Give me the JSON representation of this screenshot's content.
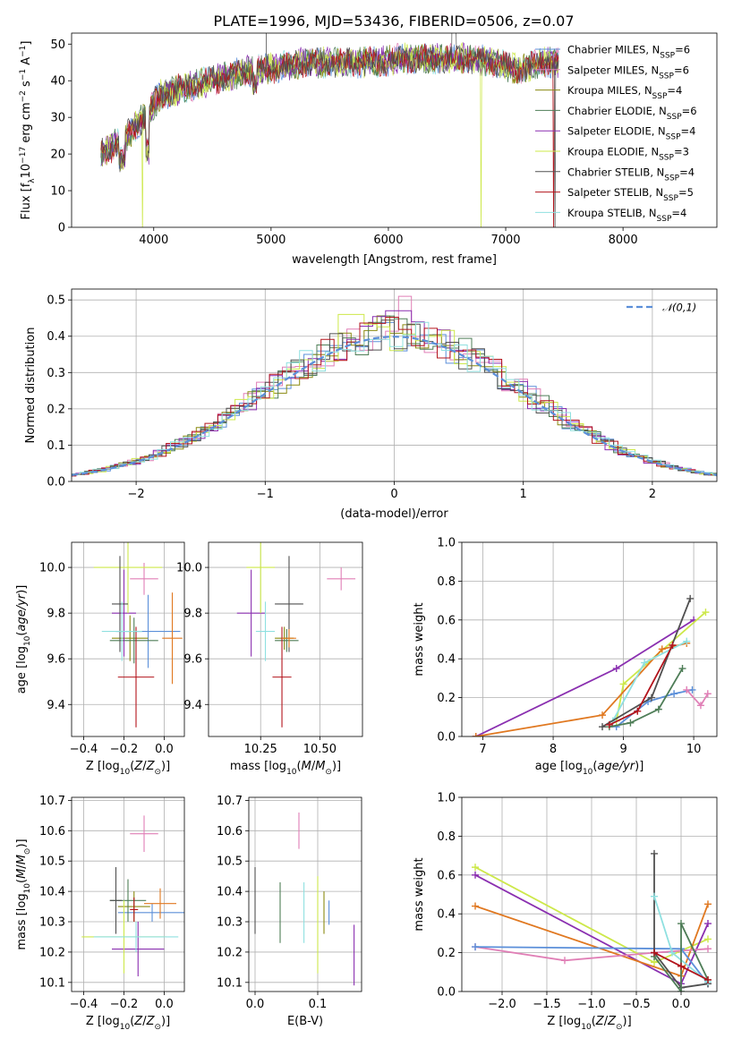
{
  "figure": {
    "title": "PLATE=1996, MJD=53436, FIBERID=0506, z=0.07"
  },
  "colors": {
    "chabrier_miles": "#5b8fd9",
    "salpeter_miles": "#e07fb6",
    "kroupa_miles": "#8a8a10",
    "chabrier_elodie": "#4e7d57",
    "salpeter_elodie": "#8a2fb0",
    "kroupa_elodie": "#cde84a",
    "chabrier_stelib": "#505050",
    "salpeter_stelib": "#b3141c",
    "kroupa_stelib": "#8fe0e0",
    "orange": "#e07820",
    "grid": "#b0b0b0"
  },
  "chart_data": [
    {
      "id": "spectrum",
      "type": "line",
      "xlabel": "wavelength [Angstrom, rest frame]",
      "ylabel": "Flux [f_λ 10^-17 erg cm^-2 s^-1 A^-1]",
      "xlim": [
        3300,
        8800
      ],
      "ylim": [
        0,
        53
      ],
      "xticks": [
        4000,
        5000,
        6000,
        7000,
        8000
      ],
      "yticks": [
        0,
        10,
        20,
        30,
        40,
        50
      ],
      "grid": false,
      "legend_position": "right",
      "continuum": {
        "x": [
          3550,
          3650,
          3800,
          3950,
          4050,
          4250,
          4500,
          4700,
          4900,
          5100,
          5300,
          5500,
          5700,
          5900,
          6100,
          6300,
          6500,
          6700,
          6900,
          7100,
          7300,
          7450
        ],
        "y": [
          20,
          22,
          26,
          31,
          36,
          38,
          40,
          42,
          43,
          44,
          45,
          45,
          45,
          45,
          46,
          46,
          46,
          46,
          45,
          43,
          45,
          45
        ]
      },
      "series": [
        {
          "name": "Chabrier MILES, N_SSP=6"
        },
        {
          "name": "Salpeter MILES, N_SSP=6"
        },
        {
          "name": "Kroupa MILES, N_SSP=4"
        },
        {
          "name": "Chabrier ELODIE, N_SSP=6"
        },
        {
          "name": "Salpeter ELODIE, N_SSP=4"
        },
        {
          "name": "Kroupa ELODIE, N_SSP=3"
        },
        {
          "name": "Chabrier STELIB, N_SSP=4"
        },
        {
          "name": "Salpeter STELIB, N_SSP=5"
        },
        {
          "name": "Kroupa STELIB, N_SSP=4"
        }
      ]
    },
    {
      "id": "residuals",
      "type": "step",
      "xlabel": "(data-model)/error",
      "ylabel": "Normed distribution",
      "xlim": [
        -2.5,
        2.5
      ],
      "ylim": [
        0,
        0.53
      ],
      "xticks": [
        -2,
        -1,
        0,
        1,
        2
      ],
      "yticks": [
        0.0,
        0.1,
        0.2,
        0.3,
        0.4,
        0.5
      ],
      "grid": true,
      "legend_position": "top-right",
      "reference": {
        "name": "𝒩(0,1)",
        "mean": 0,
        "sigma": 1
      },
      "bin_width": 0.1
    },
    {
      "id": "age_vs_Z",
      "type": "errorbar",
      "xlabel": "Z [log10(Z/Z⊙)]",
      "ylabel": "age [log10(age/yr)]",
      "xlim": [
        -0.46,
        0.1
      ],
      "ylim": [
        9.26,
        10.11
      ],
      "xticks": [
        -0.4,
        -0.2,
        0.0
      ],
      "yticks": [
        9.4,
        9.6,
        9.8,
        10.0
      ],
      "grid": true,
      "points": [
        {
          "series": 0,
          "x": -0.08,
          "y": 9.72,
          "xerr": 0.16,
          "yerr": 0.16
        },
        {
          "series": 1,
          "x": -0.1,
          "y": 9.95,
          "xerr": 0.07,
          "yerr": 0.07
        },
        {
          "series": 2,
          "x": -0.17,
          "y": 9.69,
          "xerr": 0.09,
          "yerr": 0.1
        },
        {
          "series": 3,
          "x": -0.15,
          "y": 9.68,
          "xerr": 0.12,
          "yerr": 0.1
        },
        {
          "series": 4,
          "x": -0.2,
          "y": 9.8,
          "xerr": 0.06,
          "yerr": 0.19
        },
        {
          "series": 5,
          "x": -0.18,
          "y": 10.0,
          "xerr": 0.17,
          "yerr": 0.2
        },
        {
          "series": 6,
          "x": -0.22,
          "y": 9.84,
          "xerr": 0.04,
          "yerr": 0.21
        },
        {
          "series": 7,
          "x": -0.14,
          "y": 9.52,
          "xerr": 0.09,
          "yerr": 0.22
        },
        {
          "series": 8,
          "x": -0.21,
          "y": 9.72,
          "xerr": 0.1,
          "yerr": 0.13
        },
        {
          "series": 9,
          "x": 0.04,
          "y": 9.69,
          "xerr": 0.05,
          "yerr": 0.2
        }
      ]
    },
    {
      "id": "age_vs_mass",
      "type": "errorbar",
      "xlabel": "mass [log10(M/M⊙)]",
      "ylabel": "",
      "xlim": [
        10.03,
        10.68
      ],
      "ylim": [
        9.26,
        10.11
      ],
      "xticks": [
        10.25,
        10.5
      ],
      "yticks": [
        9.4,
        9.6,
        9.8,
        10.0
      ],
      "grid": true,
      "points": [
        {
          "series": 1,
          "x": 10.59,
          "y": 9.95,
          "xerr": 0.06,
          "yerr": 0.05
        },
        {
          "series": 2,
          "x": 10.35,
          "y": 9.69,
          "xerr": 0.04,
          "yerr": 0.05
        },
        {
          "series": 3,
          "x": 10.36,
          "y": 9.68,
          "xerr": 0.05,
          "yerr": 0.05
        },
        {
          "series": 4,
          "x": 10.21,
          "y": 9.8,
          "xerr": 0.06,
          "yerr": 0.19
        },
        {
          "series": 5,
          "x": 10.25,
          "y": 10.0,
          "xerr": 0.06,
          "yerr": 0.2
        },
        {
          "series": 6,
          "x": 10.37,
          "y": 9.84,
          "xerr": 0.06,
          "yerr": 0.21
        },
        {
          "series": 7,
          "x": 10.34,
          "y": 9.52,
          "xerr": 0.04,
          "yerr": 0.22
        },
        {
          "series": 8,
          "x": 10.27,
          "y": 9.72,
          "xerr": 0.04,
          "yerr": 0.13
        },
        {
          "series": 9,
          "x": 10.37,
          "y": 9.69,
          "xerr": 0.03,
          "yerr": 0.04
        }
      ]
    },
    {
      "id": "weight_vs_age",
      "type": "line",
      "xlabel": "age [log10(age/yr)]",
      "ylabel": "mass weight",
      "xlim": [
        6.7,
        10.33
      ],
      "ylim": [
        0,
        1
      ],
      "xticks": [
        7,
        8,
        9,
        10
      ],
      "yticks": [
        0.0,
        0.2,
        0.4,
        0.6,
        0.8,
        1.0
      ],
      "grid": true,
      "series": [
        {
          "series": 0,
          "x": [
            8.9,
            9.35,
            9.72,
            9.98
          ],
          "y": [
            0.05,
            0.18,
            0.22,
            0.24
          ]
        },
        {
          "series": 4,
          "x": [
            6.9,
            8.9,
            10.0
          ],
          "y": [
            0.0,
            0.35,
            0.6
          ]
        },
        {
          "series": 5,
          "x": [
            8.9,
            9.0,
            10.17
          ],
          "y": [
            0.08,
            0.27,
            0.64
          ]
        },
        {
          "series": 9,
          "x": [
            6.9,
            8.7,
            9.55,
            9.9
          ],
          "y": [
            0.0,
            0.11,
            0.45,
            0.48
          ]
        },
        {
          "series": 3,
          "x": [
            8.8,
            9.1,
            9.5,
            9.84
          ],
          "y": [
            0.05,
            0.07,
            0.14,
            0.35
          ]
        },
        {
          "series": 8,
          "x": [
            8.85,
            9.3,
            9.9
          ],
          "y": [
            0.08,
            0.38,
            0.49
          ]
        },
        {
          "series": 6,
          "x": [
            8.7,
            9.4,
            9.95
          ],
          "y": [
            0.05,
            0.2,
            0.71
          ]
        },
        {
          "series": 7,
          "x": [
            8.8,
            9.2,
            9.7
          ],
          "y": [
            0.06,
            0.13,
            0.47
          ]
        },
        {
          "series": 1,
          "x": [
            9.9,
            10.1,
            10.2
          ],
          "y": [
            0.24,
            0.16,
            0.22
          ]
        }
      ]
    },
    {
      "id": "mass_vs_Z",
      "type": "errorbar",
      "xlabel": "Z [log10(Z/Z⊙)]",
      "ylabel": "mass [log10(M/M⊙)]",
      "xlim": [
        -0.46,
        0.1
      ],
      "ylim": [
        10.07,
        10.71
      ],
      "xticks": [
        -0.4,
        -0.2,
        0.0
      ],
      "yticks": [
        10.1,
        10.2,
        10.3,
        10.4,
        10.5,
        10.6,
        10.7
      ],
      "grid": true,
      "points": [
        {
          "series": 0,
          "x": -0.06,
          "y": 10.33,
          "xerr": 0.17,
          "yerr": 0.03
        },
        {
          "series": 1,
          "x": -0.1,
          "y": 10.59,
          "xerr": 0.07,
          "yerr": 0.06
        },
        {
          "series": 2,
          "x": -0.15,
          "y": 10.35,
          "xerr": 0.08,
          "yerr": 0.05
        },
        {
          "series": 3,
          "x": -0.18,
          "y": 10.37,
          "xerr": 0.09,
          "yerr": 0.07
        },
        {
          "series": 4,
          "x": -0.13,
          "y": 10.21,
          "xerr": 0.13,
          "yerr": 0.09
        },
        {
          "series": 5,
          "x": -0.2,
          "y": 10.25,
          "xerr": 0.21,
          "yerr": 0.12
        },
        {
          "series": 6,
          "x": -0.24,
          "y": 10.37,
          "xerr": 0.03,
          "yerr": 0.11
        },
        {
          "series": 7,
          "x": -0.15,
          "y": 10.34,
          "xerr": 0.02,
          "yerr": 0.04
        },
        {
          "series": 8,
          "x": -0.14,
          "y": 10.25,
          "xerr": 0.21,
          "yerr": 0.05
        },
        {
          "series": 9,
          "x": -0.02,
          "y": 10.36,
          "xerr": 0.08,
          "yerr": 0.05
        }
      ]
    },
    {
      "id": "mass_vs_EBV",
      "type": "errorbar",
      "xlabel": "E(B-V)",
      "ylabel": "",
      "xlim": [
        -0.01,
        0.17
      ],
      "ylim": [
        10.07,
        10.71
      ],
      "xticks": [
        0.0,
        0.1
      ],
      "yticks": [
        10.1,
        10.2,
        10.3,
        10.4,
        10.5,
        10.6,
        10.7
      ],
      "grid": true,
      "points": [
        {
          "series": 6,
          "x": 0.0,
          "y": 10.37,
          "yerr": 0.11
        },
        {
          "series": 3,
          "x": 0.04,
          "y": 10.33,
          "yerr": 0.1
        },
        {
          "series": 1,
          "x": 0.07,
          "y": 10.6,
          "yerr": 0.06
        },
        {
          "series": 8,
          "x": 0.078,
          "y": 10.33,
          "yerr": 0.1
        },
        {
          "series": 5,
          "x": 0.1,
          "y": 10.29,
          "yerr": 0.16
        },
        {
          "series": 2,
          "x": 0.11,
          "y": 10.33,
          "yerr": 0.07
        },
        {
          "series": 0,
          "x": 0.118,
          "y": 10.33,
          "yerr": 0.04
        },
        {
          "series": 4,
          "x": 0.158,
          "y": 10.19,
          "yerr": 0.1
        }
      ]
    },
    {
      "id": "weight_vs_Z",
      "type": "line",
      "xlabel": "Z [log10(Z/Z⊙)]",
      "ylabel": "mass weight",
      "xlim": [
        -2.45,
        0.4
      ],
      "ylim": [
        0,
        1
      ],
      "xticks": [
        -2.0,
        -1.5,
        -1.0,
        -0.5,
        0.0
      ],
      "yticks": [
        0.0,
        0.2,
        0.4,
        0.6,
        0.8,
        1.0
      ],
      "grid": true,
      "series": [
        {
          "series": 5,
          "x": [
            -2.3,
            -0.3,
            0.3
          ],
          "y": [
            0.64,
            0.15,
            0.27
          ]
        },
        {
          "series": 4,
          "x": [
            -2.3,
            0.0,
            0.3
          ],
          "y": [
            0.6,
            0.04,
            0.35
          ]
        },
        {
          "series": 9,
          "x": [
            -2.3,
            0.0,
            0.3
          ],
          "y": [
            0.44,
            0.08,
            0.45
          ]
        },
        {
          "series": 1,
          "x": [
            -2.3,
            -1.3,
            -0.3,
            0.3
          ],
          "y": [
            0.23,
            0.16,
            0.2,
            0.22
          ]
        },
        {
          "series": 0,
          "x": [
            -2.3,
            0.0,
            0.3
          ],
          "y": [
            0.23,
            0.22,
            0.04
          ]
        },
        {
          "series": 6,
          "x": [
            -0.3,
            -0.3,
            0.0,
            0.3
          ],
          "y": [
            0.71,
            0.2,
            0.02,
            0.04
          ]
        },
        {
          "series": 8,
          "x": [
            -0.3,
            -0.1,
            0.3
          ],
          "y": [
            0.49,
            0.2,
            0.05
          ]
        },
        {
          "series": 3,
          "x": [
            -0.3,
            0.0,
            0.0,
            0.3
          ],
          "y": [
            0.18,
            0.0,
            0.35,
            0.06
          ]
        },
        {
          "series": 7,
          "x": [
            -0.3,
            0.0,
            0.3
          ],
          "y": [
            0.2,
            0.13,
            0.06
          ]
        }
      ]
    }
  ]
}
